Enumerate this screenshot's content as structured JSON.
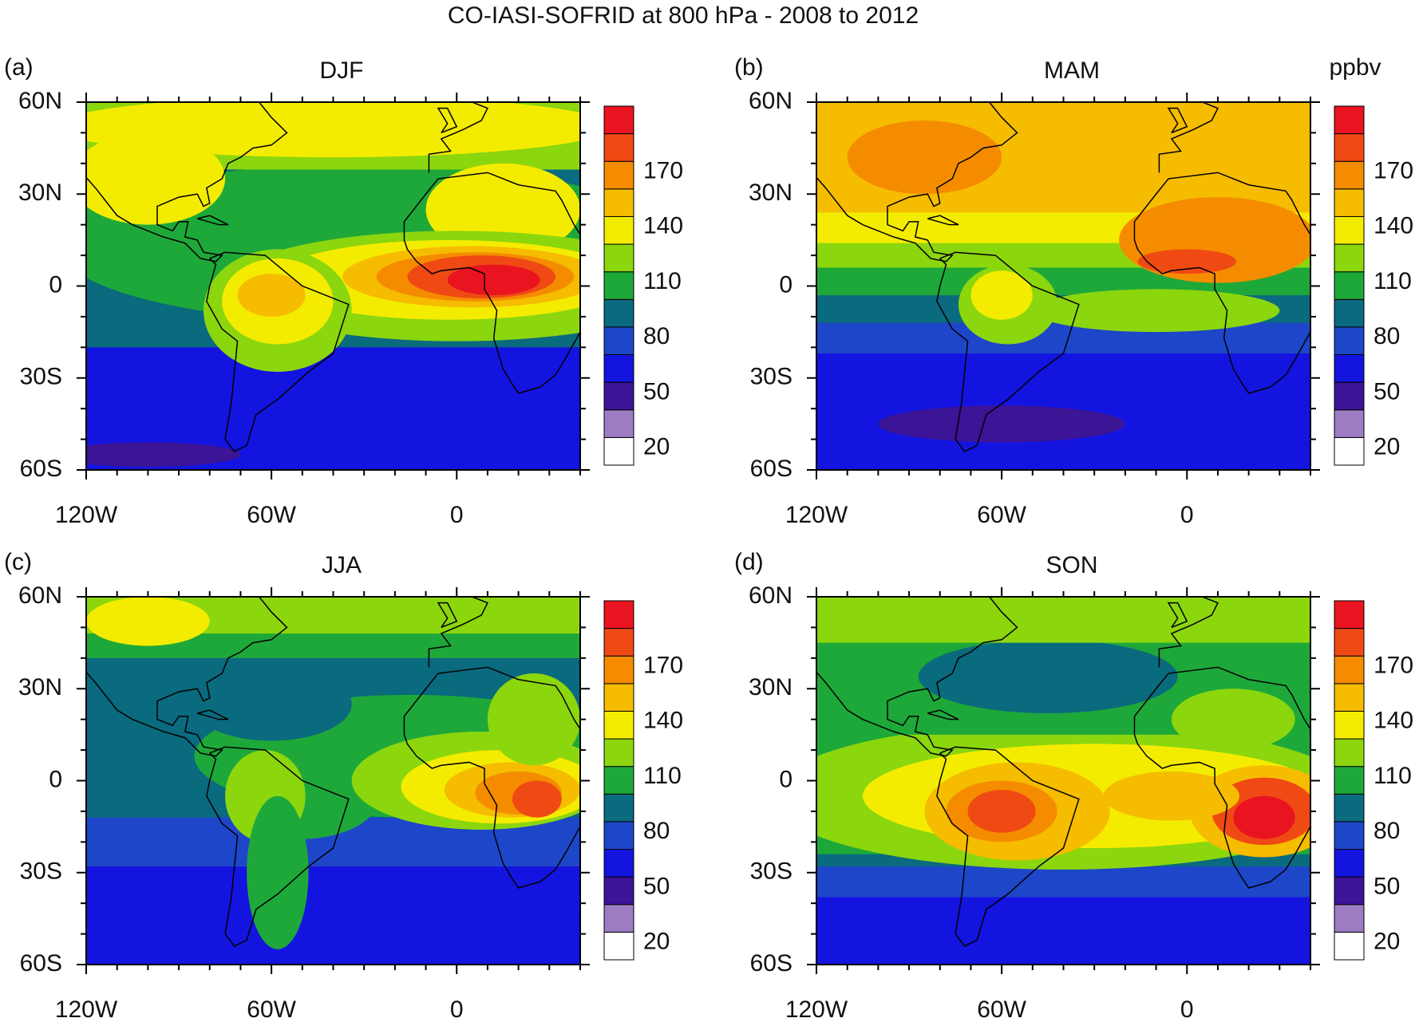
{
  "title": "CO-IASI-SOFRID at 800 hPa - 2008 to 2012",
  "unit": "ppbv",
  "colorbar": {
    "colors": [
      "#ffffff",
      "#9e7cc4",
      "#3c1496",
      "#1414e0",
      "#1e46c8",
      "#0a6a7e",
      "#1ea83a",
      "#8cd60e",
      "#f4ec00",
      "#f6bc00",
      "#f58c00",
      "#f04a14",
      "#ea1420"
    ],
    "levels": [
      20,
      50,
      80,
      110,
      140,
      170
    ]
  },
  "lat_ticks": [
    {
      "value": 60,
      "label": "60N"
    },
    {
      "value": 30,
      "label": "30N"
    },
    0,
    {
      "value": -30,
      "label": "30S"
    },
    {
      "value": -60,
      "label": "60S"
    }
  ],
  "lon_ticks": [
    {
      "value": -120,
      "label": "120W"
    },
    {
      "value": -60,
      "label": "60W"
    },
    0
  ],
  "panels": [
    {
      "label": "(a)",
      "season": "DJF"
    },
    {
      "label": "(b)",
      "season": "MAM"
    },
    {
      "label": "(c)",
      "season": "JJA"
    },
    {
      "label": "(d)",
      "season": "SON"
    }
  ]
}
